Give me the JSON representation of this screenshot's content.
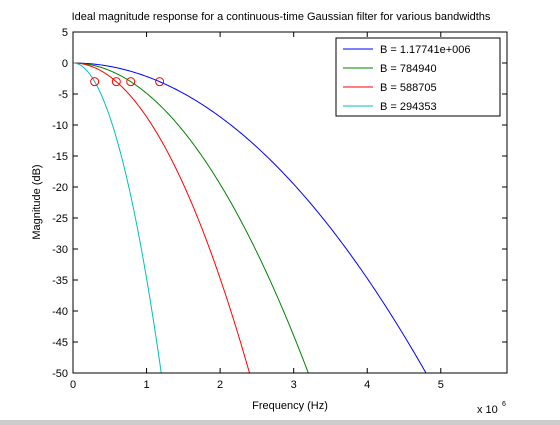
{
  "chart_data": {
    "type": "line",
    "title": "Ideal magnitude response for a continuous-time Gaussian filter for various bandwidths",
    "xlabel": "Frequency (Hz)",
    "ylabel": "Magnitude (dB)",
    "x_multiplier_label": "x 10",
    "x_multiplier_exponent": "6",
    "xlim": [
      0,
      5.9
    ],
    "ylim": [
      -50,
      5
    ],
    "x_ticks": [
      0,
      1,
      2,
      3,
      4,
      5
    ],
    "y_ticks": [
      5,
      0,
      -5,
      -10,
      -15,
      -20,
      -25,
      -30,
      -35,
      -40,
      -45,
      -50
    ],
    "grid": false,
    "legend_position": "top-right",
    "series": [
      {
        "name": "B = 1.17741e+006",
        "bandwidth_mhz": 1.17741,
        "color": "#0000ff"
      },
      {
        "name": "B = 784940",
        "bandwidth_mhz": 0.78494,
        "color": "#008000"
      },
      {
        "name": "B = 588705",
        "bandwidth_mhz": 0.588705,
        "color": "#ff0000"
      },
      {
        "name": "B = 294353",
        "bandwidth_mhz": 0.294353,
        "color": "#00bfbf"
      }
    ],
    "marker_color": "#ff0000",
    "markers_at_db": -3.01
  }
}
